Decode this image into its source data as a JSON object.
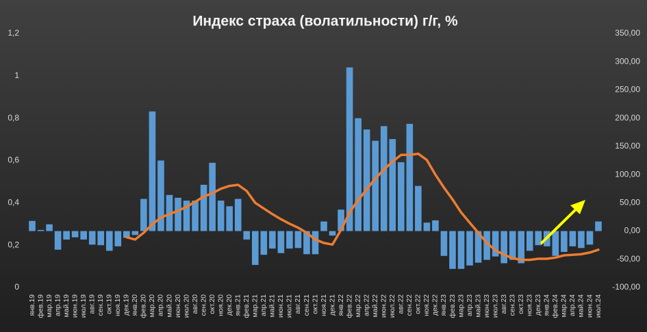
{
  "chart_data": {
    "type": "bar-line",
    "title": "Индекс страха (волатильности) г/г, %",
    "categories": [
      "янв.19",
      "фев.19",
      "мар.19",
      "апр.19",
      "май.19",
      "июн.19",
      "июл.19",
      "авг.19",
      "сен.19",
      "окт.19",
      "ноя.19",
      "дек.19",
      "янв.20",
      "фев.20",
      "мар.20",
      "апр.20",
      "май.20",
      "июн.20",
      "июл.20",
      "авг.20",
      "сен.20",
      "окт.20",
      "ноя.20",
      "дек.20",
      "янв.21",
      "фев.21",
      "мар.21",
      "апр.21",
      "май.21",
      "июн.21",
      "июл.21",
      "авг.21",
      "сен.21",
      "окт.21",
      "ноя.21",
      "дек.21",
      "янв.22",
      "фев.22",
      "мар.22",
      "апр.22",
      "май.22",
      "июн.22",
      "июл.22",
      "авг.22",
      "сен.22",
      "окт.22",
      "ноя.22",
      "дек.22",
      "янв.23",
      "фев.23",
      "мар.23",
      "апр.23",
      "май.23",
      "июн.23",
      "июл.23",
      "авг.23",
      "сен.23",
      "окт.23",
      "ноя.23",
      "дек.23",
      "янв.24",
      "фев.24",
      "мар.24",
      "апр.24",
      "май.24",
      "июн.24",
      "июл.24"
    ],
    "series": [
      {
        "type": "bar",
        "color": "#5b9bd5",
        "axis": "y2",
        "values": [
          18,
          2,
          12,
          -33,
          -15,
          -11,
          -15,
          -24,
          -25,
          -35,
          -27,
          -12,
          -7,
          57,
          212,
          125,
          64,
          59,
          54,
          54,
          82,
          121,
          54,
          44,
          57,
          -15,
          -60,
          -42,
          -31,
          -39,
          -31,
          -30,
          -41,
          -41,
          17,
          -8,
          38,
          290,
          200,
          180,
          160,
          186,
          163,
          122,
          190,
          80,
          15,
          19,
          -44,
          -67,
          -67,
          -61,
          -56,
          -51,
          -45,
          -57,
          -51,
          -57,
          -35,
          -25,
          -27,
          -44,
          -37,
          -27,
          -30,
          -24,
          17
        ]
      },
      {
        "type": "line",
        "color": "#ed7d31",
        "axis": "y2",
        "values": [
          null,
          null,
          null,
          null,
          null,
          null,
          null,
          null,
          null,
          null,
          null,
          -11,
          -15,
          -3,
          12,
          24,
          30,
          36,
          43,
          52,
          61,
          67,
          75,
          80,
          82,
          71,
          50,
          40,
          30,
          21,
          13,
          6,
          -3,
          -15,
          -21,
          -24,
          2,
          33,
          55,
          74,
          93,
          109,
          123,
          135,
          135,
          137,
          126,
          100,
          77,
          56,
          33,
          15,
          -3,
          -21,
          -34,
          -42,
          -48,
          -51,
          -51,
          -49,
          -49,
          -47,
          -43,
          -42,
          -41,
          -38,
          -33
        ]
      }
    ],
    "ylim": [
      0,
      1.2
    ],
    "yticks": [
      0,
      {
        "value": 0.2,
        "label": "0,2"
      },
      {
        "value": 0.4,
        "label": "0,4"
      },
      {
        "value": 0.6,
        "label": "0,6"
      },
      {
        "value": 0.8,
        "label": "0,8"
      },
      1,
      {
        "value": 1.2,
        "label": "1,2"
      }
    ],
    "y2lim": [
      -100,
      350
    ],
    "y2ticks": [
      {
        "value": -100,
        "label": "-100,00"
      },
      {
        "value": -50,
        "label": "-50,00"
      },
      {
        "value": 0,
        "label": "0,00"
      },
      {
        "value": 50,
        "label": "50,00"
      },
      {
        "value": 100,
        "label": "100,00"
      },
      {
        "value": 150,
        "label": "150,00"
      },
      {
        "value": 200,
        "label": "200,00"
      },
      {
        "value": 250,
        "label": "250,00"
      },
      {
        "value": 300,
        "label": "300,00"
      },
      {
        "value": 350,
        "label": "350,00"
      }
    ],
    "grid": false
  }
}
